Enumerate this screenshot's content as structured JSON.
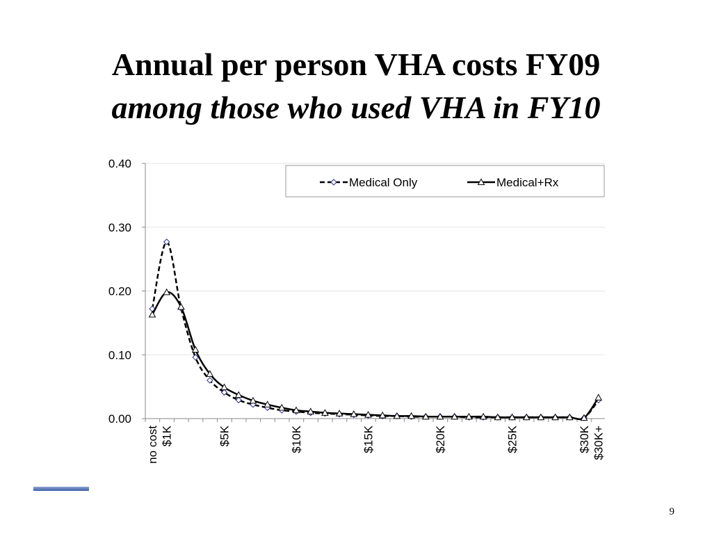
{
  "slide": {
    "title_line1": "Annual per person VHA costs FY09",
    "title_line2": "among those who used VHA in FY10",
    "page_number": "9",
    "accent_color": "#3c5ea8"
  },
  "chart_data": {
    "type": "line",
    "ylim": [
      0,
      0.4
    ],
    "y_ticks": [
      "0.00",
      "0.10",
      "0.20",
      "0.30",
      "0.40"
    ],
    "y_tick_values": [
      0,
      0.1,
      0.2,
      0.3,
      0.4
    ],
    "grid": true,
    "legend_position": "top-right",
    "x_tick_labels": [
      {
        "index": 0,
        "label": "no cost"
      },
      {
        "index": 1,
        "label": "$1K"
      },
      {
        "index": 5,
        "label": "$5K"
      },
      {
        "index": 10,
        "label": "$10K"
      },
      {
        "index": 15,
        "label": "$15K"
      },
      {
        "index": 20,
        "label": "$20K"
      },
      {
        "index": 25,
        "label": "$25K"
      },
      {
        "index": 30,
        "label": "$30K"
      },
      {
        "index": 31,
        "label": "$30K+"
      }
    ],
    "series": [
      {
        "name": "Medical Only",
        "style": "dashed",
        "marker": "diamond",
        "marker_color": "#2b2b8c",
        "values": [
          0.172,
          0.277,
          0.173,
          0.096,
          0.06,
          0.041,
          0.029,
          0.022,
          0.017,
          0.013,
          0.011,
          0.009,
          0.008,
          0.007,
          0.006,
          0.005,
          0.004,
          0.004,
          0.003,
          0.003,
          0.003,
          0.003,
          0.002,
          0.002,
          0.002,
          0.002,
          0.002,
          0.002,
          0.002,
          0.002,
          0.001,
          0.029
        ]
      },
      {
        "name": "Medical+Rx",
        "style": "solid",
        "marker": "triangle",
        "marker_color": "#000000",
        "values": [
          0.163,
          0.198,
          0.175,
          0.108,
          0.07,
          0.049,
          0.037,
          0.028,
          0.022,
          0.017,
          0.013,
          0.011,
          0.009,
          0.008,
          0.007,
          0.006,
          0.005,
          0.004,
          0.004,
          0.003,
          0.003,
          0.003,
          0.003,
          0.003,
          0.002,
          0.002,
          0.002,
          0.002,
          0.002,
          0.002,
          0.001,
          0.033
        ]
      }
    ]
  }
}
